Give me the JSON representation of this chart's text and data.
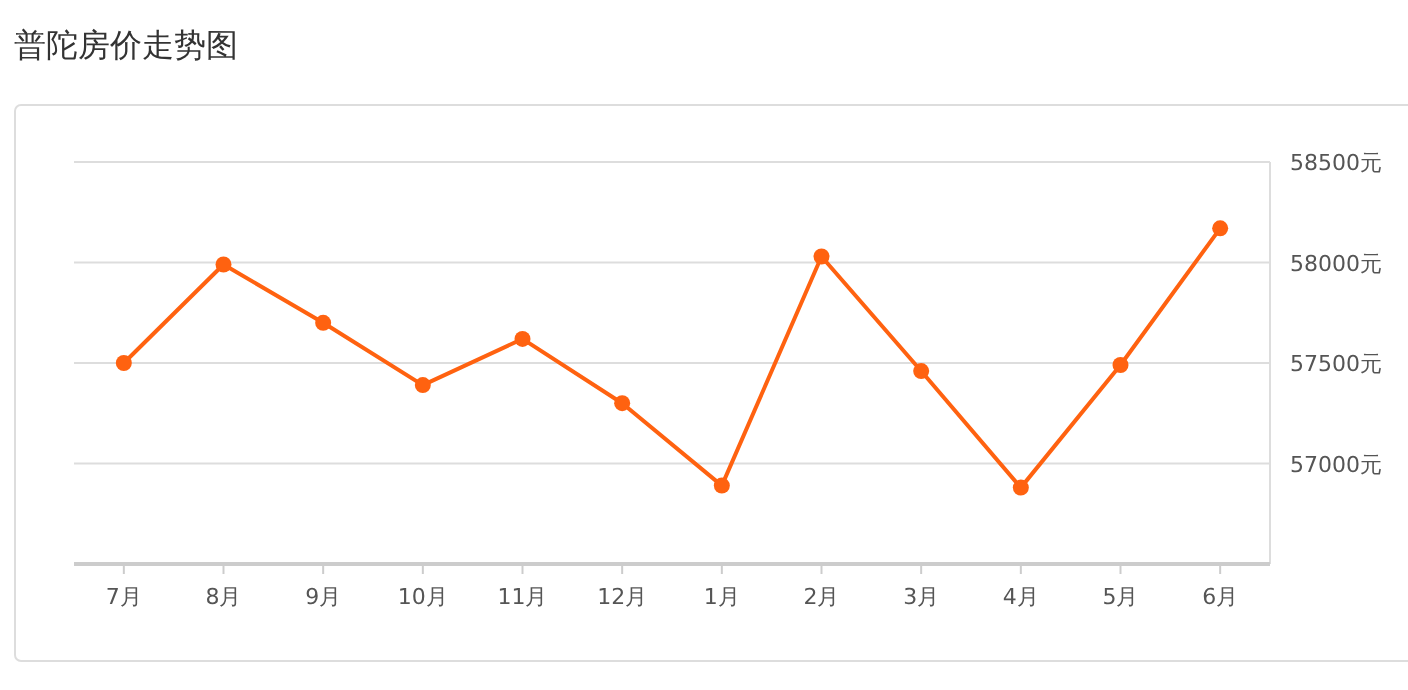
{
  "chart_data": {
    "type": "line",
    "title": "普陀房价走势图",
    "categories": [
      "7月",
      "8月",
      "9月",
      "10月",
      "11月",
      "12月",
      "1月",
      "2月",
      "3月",
      "4月",
      "5月",
      "6月"
    ],
    "series": [
      {
        "color": "#ff6210",
        "values": [
          57500,
          57990,
          57700,
          57390,
          57620,
          57300,
          56890,
          58030,
          57460,
          56880,
          57490,
          58170
        ]
      }
    ],
    "ylim": [
      56500,
      58500
    ],
    "yticks": [
      {
        "value": 57000,
        "label": "57000元"
      },
      {
        "value": 57500,
        "label": "57500元"
      },
      {
        "value": 58000,
        "label": "58000元"
      },
      {
        "value": 58500,
        "label": "58500元"
      }
    ],
    "grid": "y",
    "marker": "circle",
    "line_style": "solid"
  }
}
